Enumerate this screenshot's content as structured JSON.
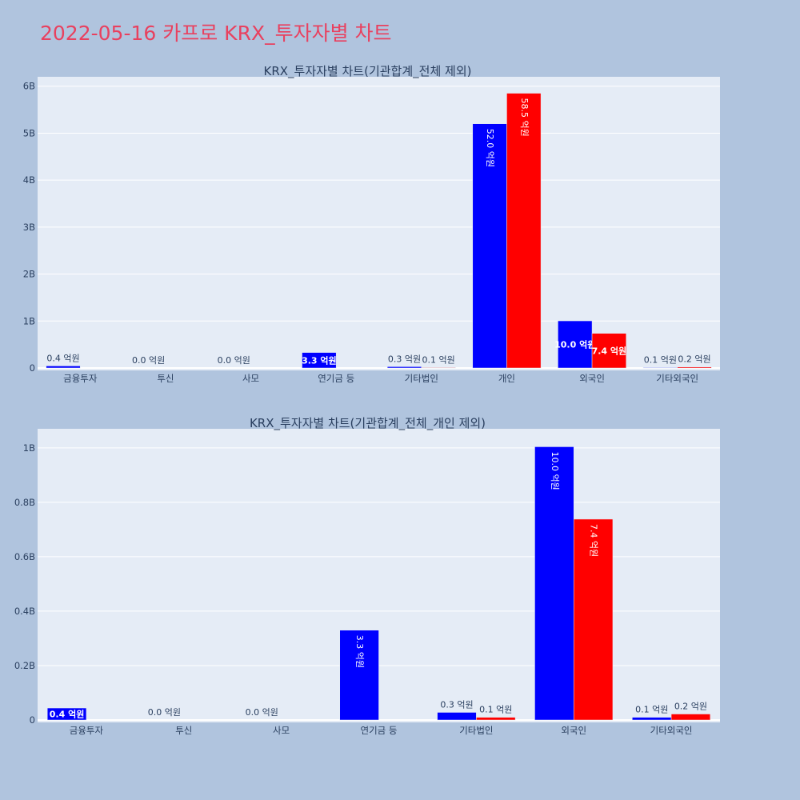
{
  "page": {
    "title": "2022-05-16 카프로 KRX_투자자별 차트"
  },
  "colors": {
    "page_background": "#b0c4de",
    "plot_background": "#e5ecf6",
    "title_color": "#e8415f",
    "buy_series": "#0000ff",
    "sell_series": "#ff0000",
    "text": "#2a3f5f"
  },
  "chart_data": [
    {
      "type": "bar",
      "title": "KRX_투자자별 차트(기관합계_전체 제외)",
      "categories": [
        "금융투자",
        "투신",
        "사모",
        "연기금 등",
        "기타법인",
        "개인",
        "외국인",
        "기타외국인"
      ],
      "ylim": [
        0,
        6200000000
      ],
      "yticks": [
        0,
        1000000000,
        2000000000,
        3000000000,
        4000000000,
        5000000000,
        6000000000
      ],
      "ytick_labels": [
        "0",
        "1B",
        "2B",
        "3B",
        "4B",
        "5B",
        "6B"
      ],
      "grid": true,
      "series": [
        {
          "color": "#0000ff",
          "values": [
            44000000,
            0,
            0,
            330000000,
            28000000,
            5200000000,
            1004000000,
            10000000
          ],
          "labels": [
            "0.4 억원",
            "0.0 억원",
            "0.0 억원",
            "3.3 억원",
            "0.3 억원",
            "52.0 억원",
            "10.0 억원",
            "0.1 억원"
          ]
        },
        {
          "color": "#ff0000",
          "values": [
            0,
            0,
            0,
            0,
            10000000,
            5850000000,
            738000000,
            22000000
          ],
          "labels": [
            "",
            "",
            "",
            "",
            "0.1 억원",
            "58.5 억원",
            "7.4 억원",
            "0.2 억원"
          ]
        }
      ]
    },
    {
      "type": "bar",
      "title": "KRX_투자자별 차트(기관합계_전체_개인 제외)",
      "categories": [
        "금융투자",
        "투신",
        "사모",
        "연기금 등",
        "기타법인",
        "외국인",
        "기타외국인"
      ],
      "ylim": [
        0,
        1070000000
      ],
      "yticks": [
        0,
        200000000,
        400000000,
        600000000,
        800000000,
        1000000000
      ],
      "ytick_labels": [
        "0",
        "0.2B",
        "0.4B",
        "0.6B",
        "0.8B",
        "1B"
      ],
      "grid": true,
      "series": [
        {
          "color": "#0000ff",
          "values": [
            44000000,
            0,
            0,
            330000000,
            28000000,
            1004000000,
            10000000
          ],
          "labels": [
            "0.4 억원",
            "0.0 억원",
            "0.0 억원",
            "3.3 억원",
            "0.3 억원",
            "10.0 억원",
            "0.1 억원"
          ]
        },
        {
          "color": "#ff0000",
          "values": [
            0,
            0,
            0,
            0,
            10000000,
            738000000,
            22000000
          ],
          "labels": [
            "",
            "",
            "",
            "",
            "0.1 억원",
            "7.4 억원",
            "0.2 억원"
          ]
        }
      ]
    }
  ]
}
